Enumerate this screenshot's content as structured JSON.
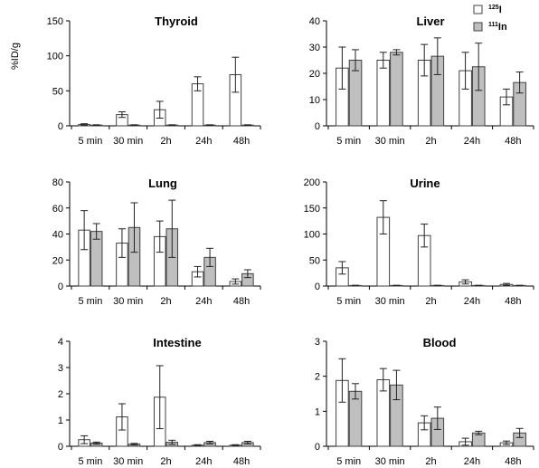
{
  "ylabel": "%ID/g",
  "categories": [
    "5 min",
    "30 min",
    "2h",
    "24h",
    "48h"
  ],
  "colors": {
    "i125": "#ffffff",
    "in111": "#bfbfbf",
    "stroke": "#404040"
  },
  "legend": [
    {
      "sup": "125",
      "sym": "I",
      "series": "i125"
    },
    {
      "sup": "111",
      "sym": "In",
      "series": "in111"
    }
  ],
  "chart_data": [
    {
      "type": "bar",
      "title": "Thyroid",
      "ylim": [
        0,
        150
      ],
      "yticks": [
        0,
        50,
        100,
        150
      ],
      "series": [
        {
          "key": "i125",
          "values": [
            2,
            16,
            23,
            60,
            73
          ],
          "errors": [
            1,
            4,
            12,
            10,
            25
          ]
        },
        {
          "key": "in111",
          "values": [
            1,
            1,
            1,
            1,
            1
          ],
          "errors": [
            0.5,
            0.5,
            0.5,
            0.5,
            0.5
          ]
        }
      ]
    },
    {
      "type": "bar",
      "title": "Liver",
      "ylim": [
        0,
        40
      ],
      "yticks": [
        0,
        10,
        20,
        30,
        40
      ],
      "series": [
        {
          "key": "i125",
          "values": [
            22,
            25,
            25,
            21,
            11
          ],
          "errors": [
            8,
            3,
            6,
            7,
            3
          ]
        },
        {
          "key": "in111",
          "values": [
            25,
            28,
            26.5,
            22.5,
            16.5
          ],
          "errors": [
            4,
            1,
            7,
            9,
            4
          ]
        }
      ]
    },
    {
      "type": "bar",
      "title": "Lung",
      "ylim": [
        0,
        80
      ],
      "yticks": [
        0,
        20,
        40,
        60,
        80
      ],
      "series": [
        {
          "key": "i125",
          "values": [
            43,
            33,
            38,
            11,
            3.5
          ],
          "errors": [
            15,
            11,
            12,
            4,
            2
          ]
        },
        {
          "key": "in111",
          "values": [
            42,
            45,
            44,
            22,
            9.5
          ],
          "errors": [
            6,
            19,
            22,
            7,
            3
          ]
        }
      ]
    },
    {
      "type": "bar",
      "title": "Urine",
      "ylim": [
        0,
        200
      ],
      "yticks": [
        0,
        50,
        100,
        150,
        200
      ],
      "series": [
        {
          "key": "i125",
          "values": [
            35,
            132,
            97,
            8,
            3
          ],
          "errors": [
            12,
            32,
            22,
            4,
            2
          ]
        },
        {
          "key": "in111",
          "values": [
            1,
            1,
            1,
            1,
            1
          ],
          "errors": [
            0.5,
            0.5,
            0.5,
            0.5,
            0.5
          ]
        }
      ]
    },
    {
      "type": "bar",
      "title": "Intestine",
      "ylim": [
        0,
        4
      ],
      "yticks": [
        0,
        1,
        2,
        3,
        4
      ],
      "series": [
        {
          "key": "i125",
          "values": [
            0.25,
            1.12,
            1.87,
            0.04,
            0.04
          ],
          "errors": [
            0.15,
            0.5,
            1.2,
            0.02,
            0.02
          ]
        },
        {
          "key": "in111",
          "values": [
            0.12,
            0.08,
            0.15,
            0.14,
            0.14
          ],
          "errors": [
            0.04,
            0.03,
            0.08,
            0.05,
            0.05
          ]
        }
      ]
    },
    {
      "type": "bar",
      "title": "Blood",
      "ylim": [
        0,
        3
      ],
      "yticks": [
        0,
        1,
        2,
        3
      ],
      "series": [
        {
          "key": "i125",
          "values": [
            1.88,
            1.9,
            0.67,
            0.13,
            0.1
          ],
          "errors": [
            0.62,
            0.32,
            0.2,
            0.1,
            0.05
          ]
        },
        {
          "key": "in111",
          "values": [
            1.57,
            1.75,
            0.8,
            0.38,
            0.38
          ],
          "errors": [
            0.22,
            0.42,
            0.32,
            0.05,
            0.13
          ]
        }
      ]
    }
  ]
}
